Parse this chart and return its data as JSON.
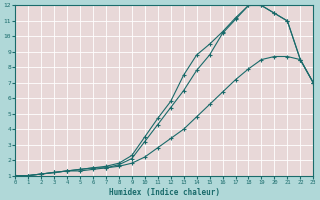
{
  "xlabel": "Humidex (Indice chaleur)",
  "xlim": [
    0,
    23
  ],
  "ylim": [
    1,
    12
  ],
  "xticks": [
    0,
    1,
    2,
    3,
    4,
    5,
    6,
    7,
    8,
    9,
    10,
    11,
    12,
    13,
    14,
    15,
    16,
    17,
    18,
    19,
    20,
    21,
    22,
    23
  ],
  "yticks": [
    1,
    2,
    3,
    4,
    5,
    6,
    7,
    8,
    9,
    10,
    11,
    12
  ],
  "outer_bg": "#b0d8d8",
  "plot_bg": "#e8d8d8",
  "grid_color": "#ffffff",
  "line_color": "#1a6b6b",
  "curve1_x": [
    0,
    1,
    2,
    3,
    4,
    5,
    6,
    7,
    8,
    9,
    10,
    11,
    12,
    13,
    14,
    15,
    16,
    17,
    18,
    19,
    20,
    21,
    22,
    23
  ],
  "curve1_y": [
    1,
    1,
    1.1,
    1.2,
    1.3,
    1.4,
    1.5,
    1.5,
    1.7,
    2.1,
    3.2,
    4.3,
    5.4,
    6.5,
    7.8,
    8.8,
    10.2,
    11.1,
    12.0,
    12.0,
    11.5,
    11.0,
    8.5,
    7.0
  ],
  "curve2_x": [
    0,
    1,
    2,
    3,
    4,
    5,
    6,
    7,
    8,
    9,
    10,
    11,
    12,
    13,
    14,
    15,
    16,
    17,
    18,
    19,
    20,
    21,
    22,
    23
  ],
  "curve2_y": [
    1,
    1,
    1.1,
    1.2,
    1.3,
    1.4,
    1.5,
    1.6,
    1.8,
    2.3,
    3.5,
    4.7,
    5.8,
    7.5,
    8.8,
    9.5,
    10.3,
    11.2,
    12.0,
    12.0,
    11.5,
    11.0,
    8.5,
    7.0
  ],
  "curve3_x": [
    0,
    1,
    2,
    3,
    4,
    5,
    6,
    7,
    8,
    9,
    10,
    11,
    12,
    13,
    14,
    15,
    16,
    17,
    18,
    19,
    20,
    21,
    22,
    23
  ],
  "curve3_y": [
    1,
    1,
    1.1,
    1.2,
    1.3,
    1.3,
    1.4,
    1.5,
    1.6,
    1.8,
    2.2,
    2.8,
    3.4,
    4.0,
    4.8,
    5.6,
    6.4,
    7.2,
    7.9,
    8.5,
    8.7,
    8.7,
    8.5,
    7.0
  ]
}
